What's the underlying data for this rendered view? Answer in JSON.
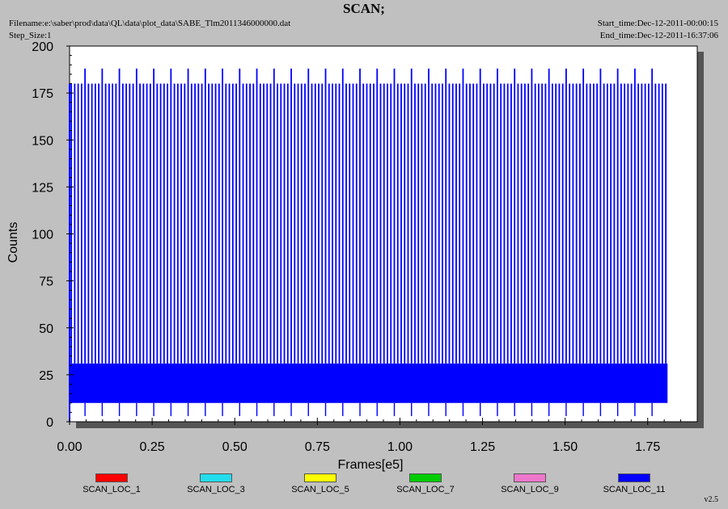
{
  "header": {
    "title": "SCAN;",
    "filename": "Filename:e:\\saber\\prod\\data\\QL\\data\\plot_data\\SABE_Tlm2011346000000.dat",
    "step_size": "Step_Size:1",
    "start_time": "Start_time:Dec-12-2011-00:00:15",
    "end_time": "End_time:Dec-12-2011-16:37:06"
  },
  "version": "v2.5",
  "chart_data": {
    "type": "line",
    "title": "SCAN;",
    "xlabel": "Frames[e5]",
    "ylabel": "Counts",
    "xlim": [
      0,
      1.9
    ],
    "ylim": [
      0,
      200
    ],
    "x_ticks": [
      "0.00",
      "0.25",
      "0.50",
      "0.75",
      "1.00",
      "1.25",
      "1.50",
      "1.75"
    ],
    "y_ticks": [
      "0",
      "25",
      "50",
      "75",
      "100",
      "125",
      "150",
      "175",
      "200"
    ],
    "grid": false,
    "legend_placement": "bottom",
    "series": [
      {
        "name": "SCAN_LOC_1",
        "color": "#ff0000"
      },
      {
        "name": "SCAN_LOC_3",
        "color": "#22ddee"
      },
      {
        "name": "SCAN_LOC_5",
        "color": "#ffff00"
      },
      {
        "name": "SCAN_LOC_7",
        "color": "#00cc00"
      },
      {
        "name": "SCAN_LOC_9",
        "color": "#ee77cc"
      },
      {
        "name": "SCAN_LOC_11",
        "color": "#0000ff",
        "x_start": 0.0,
        "x_end": 1.81,
        "band": [
          10,
          31
        ],
        "spike_count": 174,
        "spike_max": 180,
        "tall_spike_every": 5,
        "tall_spike_max": 188,
        "low_dip_min": 3
      }
    ]
  }
}
